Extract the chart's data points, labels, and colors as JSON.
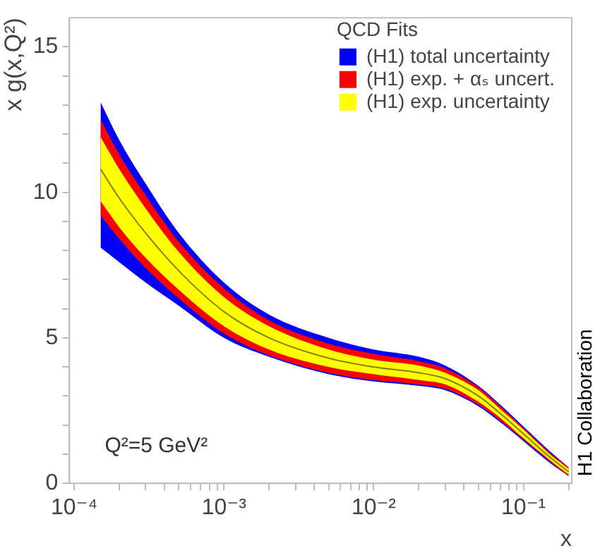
{
  "chart_data": {
    "type": "area",
    "ylabel": "x g(x,Q²)",
    "xlabel": "x",
    "legend_title": "QCD Fits",
    "legend": "top right",
    "log": "x",
    "grid": false,
    "x": [
      0.00015,
      0.0002,
      0.0003,
      0.0005,
      0.001,
      0.002,
      0.005,
      0.01,
      0.02,
      0.03,
      0.05,
      0.07,
      0.1,
      0.15,
      0.2
    ],
    "series": [
      {
        "name": "(H1) total uncertainty",
        "color": "#0000ff",
        "values": [
          null,
          null,
          null,
          null,
          null,
          null,
          null,
          null,
          null,
          null,
          null,
          null,
          null,
          null,
          null
        ],
        "lower": [
          8.1,
          7.6,
          6.9,
          6.1,
          5.0,
          4.35,
          3.75,
          3.5,
          3.35,
          3.2,
          2.65,
          2.1,
          1.45,
          0.7,
          0.25
        ],
        "upper": [
          13.1,
          11.8,
          10.3,
          8.6,
          6.9,
          5.8,
          5.0,
          4.6,
          4.35,
          4.05,
          3.35,
          2.7,
          1.95,
          1.1,
          0.55
        ]
      },
      {
        "name": "(H1) exp. + αₛ uncert.",
        "color": "#ff0000",
        "values": [
          null,
          null,
          null,
          null,
          null,
          null,
          null,
          null,
          null,
          null,
          null,
          null,
          null,
          null,
          null
        ],
        "lower": [
          9.2,
          8.4,
          7.4,
          6.35,
          5.15,
          4.4,
          3.8,
          3.55,
          3.4,
          3.25,
          2.7,
          2.15,
          1.5,
          0.75,
          0.25
        ],
        "upper": [
          12.5,
          11.3,
          9.9,
          8.3,
          6.7,
          5.6,
          4.8,
          4.45,
          4.2,
          3.95,
          3.3,
          2.65,
          1.9,
          1.05,
          0.55
        ]
      },
      {
        "name": "(H1) exp. uncertainty",
        "color": "#ffff00",
        "values": [
          null,
          null,
          null,
          null,
          null,
          null,
          null,
          null,
          null,
          null,
          null,
          null,
          null,
          null,
          null
        ],
        "lower": [
          9.7,
          8.8,
          7.75,
          6.65,
          5.4,
          4.6,
          4.0,
          3.75,
          3.55,
          3.4,
          2.8,
          2.25,
          1.55,
          0.8,
          0.3
        ],
        "upper": [
          11.9,
          10.8,
          9.45,
          7.95,
          6.4,
          5.4,
          4.6,
          4.25,
          4.05,
          3.8,
          3.2,
          2.55,
          1.85,
          1.0,
          0.5
        ]
      },
      {
        "type": "line",
        "color": "#808000",
        "values": [
          10.8,
          9.8,
          8.6,
          7.3,
          5.9,
          5.0,
          4.3,
          4.0,
          3.8,
          3.6,
          3.0,
          2.4,
          1.7,
          0.9,
          0.4
        ]
      }
    ],
    "xlim": [
      9.3e-05,
      0.21
    ],
    "xticks": [
      {
        "value": 0.0001,
        "label": "10⁻⁴"
      },
      {
        "value": 0.0002,
        "label": null
      },
      {
        "value": 0.0003,
        "label": null
      },
      {
        "value": 0.0004,
        "label": null
      },
      {
        "value": 0.0005,
        "label": null
      },
      {
        "value": 0.0006,
        "label": null
      },
      {
        "value": 0.0007,
        "label": null
      },
      {
        "value": 0.0008,
        "label": null
      },
      {
        "value": 0.0009,
        "label": null
      },
      {
        "value": 0.001,
        "label": "10⁻³"
      },
      {
        "value": 0.002,
        "label": null
      },
      {
        "value": 0.003,
        "label": null
      },
      {
        "value": 0.004,
        "label": null
      },
      {
        "value": 0.005,
        "label": null
      },
      {
        "value": 0.006,
        "label": null
      },
      {
        "value": 0.007,
        "label": null
      },
      {
        "value": 0.008,
        "label": null
      },
      {
        "value": 0.009,
        "label": null
      },
      {
        "value": 0.01,
        "label": "10⁻²"
      },
      {
        "value": 0.02,
        "label": null
      },
      {
        "value": 0.03,
        "label": null
      },
      {
        "value": 0.04,
        "label": null
      },
      {
        "value": 0.05,
        "label": null
      },
      {
        "value": 0.06,
        "label": null
      },
      {
        "value": 0.07,
        "label": null
      },
      {
        "value": 0.08,
        "label": null
      },
      {
        "value": 0.09,
        "label": null
      },
      {
        "value": 0.1,
        "label": "10⁻¹"
      },
      {
        "value": 0.2,
        "label": null
      }
    ],
    "ylim": [
      0,
      16
    ],
    "yticks": [
      0,
      {
        "value": 1,
        "label": null
      },
      {
        "value": 2,
        "label": null
      },
      {
        "value": 3,
        "label": null
      },
      {
        "value": 4,
        "label": null
      },
      5,
      {
        "value": 6,
        "label": null
      },
      {
        "value": 7,
        "label": null
      },
      {
        "value": 8,
        "label": null
      },
      {
        "value": 9,
        "label": null
      },
      10,
      {
        "value": 11,
        "label": null
      },
      {
        "value": 12,
        "label": null
      },
      {
        "value": 13,
        "label": null
      },
      {
        "value": 14,
        "label": null
      },
      15
    ],
    "annotations": [
      "Q²=5 GeV²",
      "H1 Collaboration"
    ]
  }
}
